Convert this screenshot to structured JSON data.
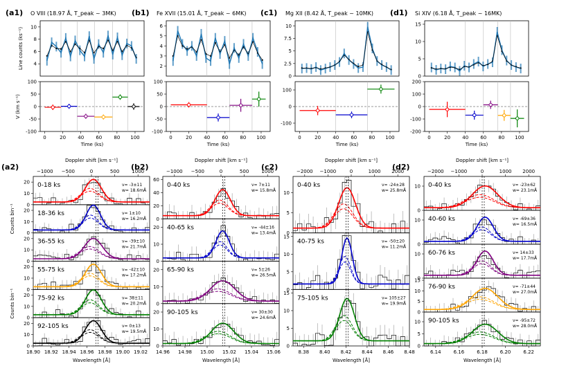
{
  "colors": {
    "red": "#ff0000",
    "blue": "#0000cc",
    "purple": "#800080",
    "orange": "#ffa500",
    "green": "#008000",
    "black": "#000000",
    "line": "#1f77b4",
    "grey": "#999999"
  },
  "chart_data": [
    {
      "panel": "a1",
      "type": "line",
      "title_id": "(a1)",
      "title_text": "O VIII (18.97 Å, T_peak ~ 3MK)",
      "ylabel": "Line counts (ks⁻¹)",
      "ylim": [
        2,
        11
      ],
      "yticks": [
        4,
        6,
        8,
        10
      ],
      "light": [
        4.5,
        7.5,
        6.8,
        5.8,
        8.2,
        5.2,
        7.8,
        6.2,
        5.2,
        8.5,
        4.8,
        7.2,
        5.8,
        8.6,
        5.5,
        8.3,
        5.4,
        7.3,
        6.9,
        4.8
      ],
      "dark": [
        5.3,
        7.0,
        6.5,
        6.4,
        7.6,
        6.0,
        7.2,
        6.5,
        5.8,
        7.8,
        5.8,
        6.8,
        6.5,
        7.8,
        6.2,
        7.6,
        6.0,
        7.0,
        6.6,
        5.0
      ],
      "vlines": [
        18,
        36,
        55,
        75,
        92
      ],
      "v_title": "V (km s⁻¹)",
      "v_ylim": [
        -100,
        100
      ],
      "v_yticks": [
        -100,
        -50,
        0,
        50,
        100
      ],
      "velocity": [
        {
          "t": [
            0,
            18
          ],
          "v": -3,
          "err": 11,
          "c": "red"
        },
        {
          "t": [
            18,
            36
          ],
          "v": 1,
          "err": 10,
          "c": "blue"
        },
        {
          "t": [
            36,
            55
          ],
          "v": -39,
          "err": 10,
          "c": "purple"
        },
        {
          "t": [
            55,
            75
          ],
          "v": -42,
          "err": 10,
          "c": "orange"
        },
        {
          "t": [
            75,
            92
          ],
          "v": 38,
          "err": 11,
          "c": "green"
        },
        {
          "t": [
            92,
            105
          ],
          "v": 0,
          "err": 13,
          "c": "black"
        }
      ],
      "xlabel": "Time (ks)",
      "xticks": [
        0,
        20,
        40,
        60,
        80,
        100
      ]
    },
    {
      "panel": "b1",
      "type": "line",
      "title_id": "(b1)",
      "title_text": "Fe XVII (15.01 Å, T_peak ~ 6MK)",
      "ylabel": "",
      "ylim": [
        1,
        6.5
      ],
      "yticks": [
        2,
        3,
        4,
        5,
        6
      ],
      "light": [
        2.5,
        5.5,
        4.2,
        3.5,
        4.0,
        3.0,
        5.2,
        2.8,
        2.5,
        4.8,
        3.2,
        4.5,
        2.2,
        3.8,
        2.8,
        4.2,
        3.0,
        4.8,
        3.4,
        2.2
      ],
      "dark": [
        3.0,
        5.0,
        4.0,
        3.7,
        3.9,
        3.4,
        4.6,
        3.2,
        3.0,
        4.3,
        3.4,
        4.1,
        2.8,
        3.6,
        3.1,
        3.9,
        3.2,
        4.4,
        3.3,
        2.6
      ],
      "vlines": [
        40,
        65,
        90
      ],
      "v_title": "",
      "v_ylim": [
        -100,
        100
      ],
      "v_yticks": [
        -100,
        -50,
        0,
        50,
        100
      ],
      "velocity": [
        {
          "t": [
            0,
            40
          ],
          "v": 7,
          "err": 11,
          "c": "red"
        },
        {
          "t": [
            40,
            65
          ],
          "v": -44,
          "err": 16,
          "c": "blue"
        },
        {
          "t": [
            65,
            90
          ],
          "v": 5,
          "err": 26,
          "c": "purple"
        },
        {
          "t": [
            90,
            105
          ],
          "v": 30,
          "err": 30,
          "c": "green"
        }
      ],
      "xlabel": "Time (ks)",
      "xticks": [
        0,
        20,
        40,
        60,
        80,
        100
      ]
    },
    {
      "panel": "c1",
      "type": "line",
      "title_id": "(c1)",
      "title_text": "Mg XII (8.42 Å, T_peak ~ 10MK)",
      "ylabel": "",
      "ylim": [
        0,
        11
      ],
      "yticks": [
        0,
        2.5,
        5,
        7.5,
        10
      ],
      "light": [
        1.5,
        1.6,
        1.4,
        1.8,
        1.2,
        1.5,
        1.8,
        2.2,
        2.8,
        4.5,
        3.2,
        2.4,
        1.6,
        1.8,
        9.8,
        5.5,
        3.0,
        2.2,
        1.8,
        1.2
      ],
      "dark": [
        1.6,
        1.6,
        1.5,
        1.7,
        1.4,
        1.6,
        1.8,
        2.2,
        2.9,
        4.2,
        3.3,
        2.5,
        1.9,
        2.2,
        8.8,
        5.2,
        3.0,
        2.3,
        1.8,
        1.3
      ],
      "vlines": [
        40,
        75
      ],
      "v_title": "",
      "v_ylim": [
        -150,
        150
      ],
      "v_yticks": [
        -100,
        0,
        100
      ],
      "velocity": [
        {
          "t": [
            0,
            40
          ],
          "v": -24,
          "err": 28,
          "c": "red"
        },
        {
          "t": [
            40,
            75
          ],
          "v": -50,
          "err": 20,
          "c": "blue"
        },
        {
          "t": [
            75,
            105
          ],
          "v": 105,
          "err": 27,
          "c": "green"
        }
      ],
      "xlabel": "Time (ks)",
      "xticks": [
        0,
        20,
        40,
        60,
        80,
        100
      ]
    },
    {
      "panel": "d1",
      "type": "line",
      "title_id": "(d1)",
      "title_text": "Si XIV (6.18 Å, T_peak ~ 16MK)",
      "ylabel": "",
      "ylim": [
        0,
        16
      ],
      "yticks": [
        0,
        5,
        10,
        15
      ],
      "light": [
        2.5,
        1.8,
        2.2,
        2.0,
        2.8,
        2.5,
        1.5,
        3.0,
        2.5,
        3.5,
        4.2,
        2.8,
        3.5,
        4.0,
        12.8,
        7.5,
        4.5,
        3.2,
        2.6,
        2.2
      ],
      "dark": [
        2.4,
        2.0,
        2.2,
        2.1,
        2.6,
        2.4,
        1.9,
        2.8,
        2.6,
        3.3,
        3.9,
        3.0,
        3.4,
        4.3,
        11.8,
        7.2,
        4.4,
        3.2,
        2.7,
        2.3
      ],
      "vlines": [
        40,
        60,
        76,
        90
      ],
      "v_title": "",
      "v_ylim": [
        -200,
        200
      ],
      "v_yticks": [
        -200,
        -100,
        0,
        100,
        200
      ],
      "velocity": [
        {
          "t": [
            0,
            40
          ],
          "v": -23,
          "err": 62,
          "c": "red"
        },
        {
          "t": [
            40,
            60
          ],
          "v": -69,
          "err": 36,
          "c": "blue"
        },
        {
          "t": [
            60,
            76
          ],
          "v": 14,
          "err": 33,
          "c": "purple"
        },
        {
          "t": [
            76,
            90
          ],
          "v": -71,
          "err": 44,
          "c": "orange"
        },
        {
          "t": [
            90,
            105
          ],
          "v": -95,
          "err": 72,
          "c": "green"
        }
      ],
      "xlabel": "Time (ks)",
      "xticks": [
        0,
        20,
        40,
        60,
        80,
        100
      ]
    },
    {
      "panel": "a2",
      "type": "histogram",
      "title_id": "(a2)",
      "toplabel": "Doppler shift [km s⁻¹]",
      "xlabel": "Wavelength [Å]",
      "xlim": [
        18.9,
        19.03
      ],
      "xticks": [
        "18.90",
        "18.92",
        "18.94",
        "18.96",
        "18.98",
        "19.00",
        "19.02"
      ],
      "topticks": [
        "−1000",
        "−500",
        "0",
        "500",
        "1000"
      ],
      "center": 18.9671,
      "vline_dash": 18.97,
      "rows": [
        {
          "time": "0-18 ks",
          "v": "v= -3±11",
          "w": "w= 18.6mÅ",
          "c": "red",
          "ymax": 25,
          "yticks": [
            0,
            10,
            20
          ],
          "peak": 20,
          "sig": 0.009
        },
        {
          "time": "18-36 ks",
          "v": "v= 1±10",
          "w": "w= 16.2mÅ",
          "c": "blue",
          "ymax": 25,
          "yticks": [
            0,
            10,
            20
          ],
          "peak": 22,
          "sig": 0.008
        },
        {
          "time": "36-55 ks",
          "v": "v= -39±10",
          "w": "w= 21.7mÅ",
          "c": "purple",
          "ymax": 25,
          "yticks": [
            0,
            10,
            20
          ],
          "peak": 18,
          "sig": 0.01
        },
        {
          "time": "55-75 ks",
          "v": "v= -42±10",
          "w": "w= 17.2mÅ",
          "c": "orange",
          "ymax": 25,
          "yticks": [
            0,
            10,
            20
          ],
          "peak": 20,
          "sig": 0.009
        },
        {
          "time": "75-92 ks",
          "v": "v= 38±11",
          "w": "w= 20.2mÅ",
          "c": "green",
          "ymax": 25,
          "yticks": [
            0,
            10,
            20
          ],
          "peak": 22,
          "sig": 0.009
        },
        {
          "time": "92-105 ks",
          "v": "v= 0±13",
          "w": "w= 19.5mÅ",
          "c": "black",
          "ymax": 25,
          "yticks": [
            0,
            10,
            20
          ],
          "peak": 20,
          "sig": 0.009
        }
      ],
      "ylabels": [
        "Counts bin⁻¹",
        "Counts bin⁻¹"
      ]
    },
    {
      "panel": "b2",
      "type": "histogram",
      "title_id": "(b2)",
      "toplabel": "Doppler shift [km s⁻¹]",
      "xlabel": "Wavelength [Å]",
      "xlim": [
        14.96,
        15.065
      ],
      "xticks": [
        "14.96",
        "14.98",
        "15.00",
        "15.02",
        "15.04",
        "15.06"
      ],
      "topticks": [
        "−1000",
        "−500",
        "0",
        "500",
        "1000"
      ],
      "center": 15.014,
      "vline_dash": 15.014,
      "rows": [
        {
          "time": "0-40 ks",
          "v": "v= 7±11",
          "w": "w= 15.8mÅ",
          "c": "red",
          "ymax": 65,
          "yticks": [
            0,
            20,
            40,
            60
          ],
          "peak": 40,
          "sig": 0.007
        },
        {
          "time": "40-65 ks",
          "v": "v= -44±16",
          "w": "w= 13.4mÅ",
          "c": "blue",
          "ymax": 25,
          "yticks": [
            0,
            10,
            20
          ],
          "peak": 16,
          "sig": 0.006
        },
        {
          "time": "65-90 ks",
          "v": "v= 5±26",
          "w": "w= 26.5mÅ",
          "c": "purple",
          "ymax": 25,
          "yticks": [
            0,
            10,
            20
          ],
          "peak": 12,
          "sig": 0.011
        },
        {
          "time": "90-105 ks",
          "v": "v= 30±30",
          "w": "w= 24.6mÅ",
          "c": "green",
          "ymax": 25,
          "yticks": [
            0,
            10,
            20
          ],
          "peak": 12,
          "sig": 0.01
        }
      ]
    },
    {
      "panel": "c2",
      "type": "histogram",
      "title_id": "(c2)",
      "toplabel": "Doppler shift [km s⁻¹]",
      "xlabel": "Wavelength [Å]",
      "xlim": [
        8.37,
        8.48
      ],
      "xticks": [
        "8.38",
        "8.40",
        "8.42",
        "8.44",
        "8.46",
        "8.48"
      ],
      "topticks": [
        "−2000",
        "−1000",
        "0",
        "1000",
        "2000"
      ],
      "center": 8.421,
      "vline_dash": 8.42,
      "rows": [
        {
          "time": "0-40 ks",
          "v": "v= -24±28",
          "w": "w= 25.8mÅ",
          "c": "red",
          "ymax": 14,
          "yticks": [
            0,
            5,
            10
          ],
          "peak": 10,
          "sig": 0.008
        },
        {
          "time": "40-75 ks",
          "v": "v= -50±20",
          "w": "w= 11.2mÅ",
          "c": "blue",
          "ymax": 16,
          "yticks": [
            0,
            5,
            10,
            15
          ],
          "peak": 13,
          "sig": 0.005
        },
        {
          "time": "75-105 ks",
          "v": "v= 105±27",
          "w": "w= 19.9mÅ",
          "c": "green",
          "ymax": 16,
          "yticks": [
            0,
            5,
            10,
            15
          ],
          "peak": 12,
          "sig": 0.007
        }
      ]
    },
    {
      "panel": "d2",
      "type": "histogram",
      "title_id": "(d2)",
      "toplabel": "Doppler shift [km s⁻¹]",
      "xlabel": "Wavelength [Å]",
      "xlim": [
        6.13,
        6.23
      ],
      "xticks": [
        "6.14",
        "6.16",
        "6.18",
        "6.20",
        "6.22"
      ],
      "topticks": [
        "−2000",
        "−1000",
        "0",
        "1000",
        "2000"
      ],
      "center": 6.1825,
      "vline_dash": 6.18,
      "rows": [
        {
          "time": "0-40 ks",
          "v": "v= -23±62",
          "w": "w= 23.1mÅ",
          "c": "red",
          "ymax": 14,
          "yticks": [
            0,
            10
          ],
          "peak": 9,
          "sig": 0.011
        },
        {
          "time": "40-60 ks",
          "v": "v= -69±36",
          "w": "w= 16.5mÅ",
          "c": "blue",
          "ymax": 14,
          "yticks": [
            0,
            10
          ],
          "peak": 10,
          "sig": 0.007
        },
        {
          "time": "60-76 ks",
          "v": "v= 14±33",
          "w": "w= 17.7mÅ",
          "c": "purple",
          "ymax": 14,
          "yticks": [
            0,
            10
          ],
          "peak": 10,
          "sig": 0.007
        },
        {
          "time": "76-90 ks",
          "v": "v= -71±44",
          "w": "w= 27.0mÅ",
          "c": "orange",
          "ymax": 16,
          "yticks": [
            0,
            5,
            10,
            15
          ],
          "peak": 10,
          "sig": 0.011
        },
        {
          "time": "90-105 ks",
          "v": "v= -95±72",
          "w": "w= 28.0mÅ",
          "c": "green",
          "ymax": 14,
          "yticks": [
            0,
            5,
            10
          ],
          "peak": 8,
          "sig": 0.011
        }
      ]
    }
  ]
}
